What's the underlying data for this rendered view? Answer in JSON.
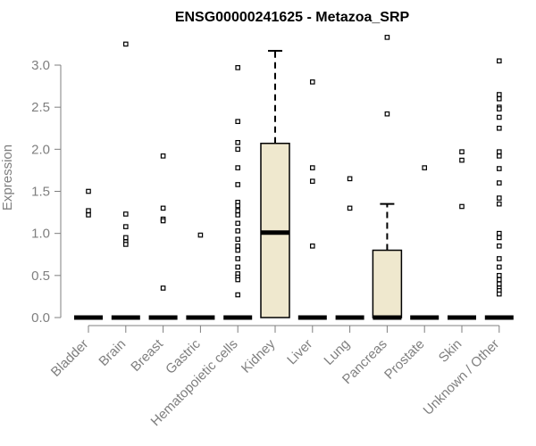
{
  "chart_data": {
    "type": "box",
    "title": "ENSG00000241625 - Metazoa_SRP",
    "xlabel": "",
    "ylabel": "Expression",
    "ylim": [
      0,
      3.2
    ],
    "yticks": [
      0.0,
      0.5,
      1.0,
      1.5,
      2.0,
      2.5,
      3.0
    ],
    "ytick_labels": [
      "0.0",
      "0.5",
      "1.0",
      "1.5",
      "2.0",
      "2.5",
      "3.0"
    ],
    "grid": false,
    "legend": "none",
    "colors": {
      "box_fill": "#efe8ce",
      "outline": "#000000",
      "axis_text": "#7f7f7f",
      "axis_line": "#7f7f7f"
    },
    "categories": [
      "Bladder",
      "Brain",
      "Breast",
      "Gastric",
      "Hematopoietic cells",
      "Kidney",
      "Liver",
      "Lung",
      "Pancreas",
      "Prostate",
      "Skin",
      "Unknown / Other"
    ],
    "boxes": [
      {
        "category": "Bladder",
        "q1": 0,
        "median": 0,
        "q3": 0,
        "whisker_low": 0,
        "whisker_high": 0,
        "outliers": [
          1.5,
          1.27,
          1.22
        ]
      },
      {
        "category": "Brain",
        "q1": 0,
        "median": 0,
        "q3": 0,
        "whisker_low": 0,
        "whisker_high": 0,
        "outliers": [
          3.25,
          1.23,
          1.08,
          0.95,
          0.9,
          0.87
        ]
      },
      {
        "category": "Breast",
        "q1": 0,
        "median": 0,
        "q3": 0,
        "whisker_low": 0,
        "whisker_high": 0,
        "outliers": [
          1.92,
          1.3,
          1.17,
          1.15,
          0.35
        ]
      },
      {
        "category": "Gastric",
        "q1": 0,
        "median": 0,
        "q3": 0,
        "whisker_low": 0,
        "whisker_high": 0,
        "outliers": [
          0.98
        ]
      },
      {
        "category": "Hematopoietic cells",
        "q1": 0,
        "median": 0,
        "q3": 0,
        "whisker_low": 0,
        "whisker_high": 0,
        "outliers": [
          2.97,
          2.33,
          2.08,
          2.0,
          1.78,
          1.58,
          1.37,
          1.33,
          1.27,
          1.22,
          1.12,
          1.03,
          0.93,
          0.85,
          0.8,
          0.7,
          0.6,
          0.52,
          0.48,
          0.45,
          0.27
        ]
      },
      {
        "category": "Kidney",
        "q1": 0,
        "median": 1.01,
        "q3": 2.07,
        "whisker_low": 0,
        "whisker_high": 3.17,
        "outliers": []
      },
      {
        "category": "Liver",
        "q1": 0,
        "median": 0,
        "q3": 0,
        "whisker_low": 0,
        "whisker_high": 0,
        "outliers": [
          2.8,
          1.78,
          1.62,
          0.85
        ]
      },
      {
        "category": "Lung",
        "q1": 0,
        "median": 0,
        "q3": 0,
        "whisker_low": 0,
        "whisker_high": 0,
        "outliers": [
          1.65,
          1.3
        ]
      },
      {
        "category": "Pancreas",
        "q1": 0,
        "median": 0,
        "q3": 0.8,
        "whisker_low": 0,
        "whisker_high": 1.35,
        "outliers": [
          3.33,
          2.42
        ]
      },
      {
        "category": "Prostate",
        "q1": 0,
        "median": 0,
        "q3": 0,
        "whisker_low": 0,
        "whisker_high": 0,
        "outliers": [
          1.78
        ]
      },
      {
        "category": "Skin",
        "q1": 0,
        "median": 0,
        "q3": 0,
        "whisker_low": 0,
        "whisker_high": 0,
        "outliers": [
          1.97,
          1.87,
          1.32
        ]
      },
      {
        "category": "Unknown / Other",
        "q1": 0,
        "median": 0,
        "q3": 0,
        "whisker_low": 0,
        "whisker_high": 0,
        "outliers": [
          3.05,
          2.65,
          2.6,
          2.5,
          2.48,
          2.38,
          2.25,
          1.97,
          1.92,
          1.77,
          1.6,
          1.42,
          1.35,
          1.0,
          0.95,
          0.85,
          0.7,
          0.6,
          0.5,
          0.45,
          0.4,
          0.35,
          0.32,
          0.28
        ]
      }
    ]
  }
}
